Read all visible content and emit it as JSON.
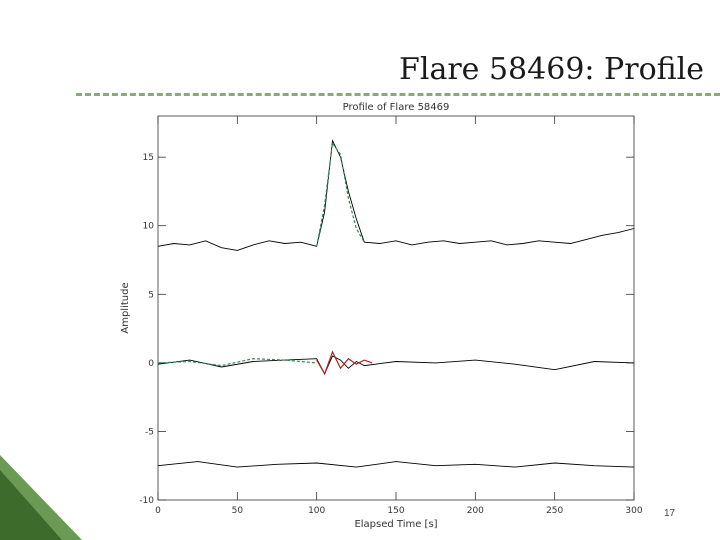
{
  "slide": {
    "title": "Flare 58469: Profile",
    "page_number": "17",
    "colors": {
      "rule": "#8aa97a",
      "corner_dark": "#3c6b2c",
      "corner_light": "#6b9a55"
    }
  },
  "chart_data": {
    "type": "line",
    "title": "Profile of Flare 58469",
    "xlabel": "Elapsed Time [s]",
    "ylabel": "Amplitude",
    "xlim": [
      0,
      300
    ],
    "ylim": [
      -10,
      18
    ],
    "x_ticks": [
      "0",
      "50",
      "100",
      "150",
      "200",
      "250",
      "300"
    ],
    "y_ticks": [
      "-10",
      "-5",
      "0",
      "5",
      "10",
      "15"
    ],
    "y_tick_values": [
      -10,
      -5,
      0,
      5,
      10,
      15
    ],
    "grid": false,
    "series": [
      {
        "role": "observed-profile",
        "color": "#000000",
        "x": [
          0,
          10,
          20,
          30,
          40,
          50,
          60,
          70,
          80,
          90,
          100,
          105,
          110,
          115,
          120,
          125,
          130,
          140,
          150,
          160,
          170,
          180,
          190,
          200,
          210,
          220,
          230,
          240,
          250,
          260,
          270,
          280,
          290,
          300
        ],
        "y": [
          8.5,
          8.7,
          8.6,
          8.9,
          8.4,
          8.2,
          8.6,
          8.9,
          8.7,
          8.8,
          8.5,
          11,
          16.2,
          15,
          12.5,
          10.5,
          8.8,
          8.7,
          8.9,
          8.6,
          8.8,
          8.9,
          8.7,
          8.8,
          8.9,
          8.6,
          8.7,
          8.9,
          8.8,
          8.7,
          9.0,
          9.3,
          9.5,
          9.8
        ]
      },
      {
        "role": "model-fit",
        "color": "#2e8b57",
        "x": [
          100,
          105,
          110,
          115,
          120,
          125,
          130
        ],
        "y": [
          8.5,
          11.5,
          16.0,
          15.2,
          12.0,
          9.8,
          8.8
        ]
      },
      {
        "role": "residuals",
        "color": "#000000",
        "x": [
          0,
          20,
          40,
          60,
          80,
          100,
          105,
          110,
          115,
          120,
          125,
          130,
          150,
          175,
          200,
          225,
          250,
          275,
          300
        ],
        "y": [
          -0.1,
          0.2,
          -0.3,
          0.1,
          0.2,
          0.3,
          -0.8,
          0.5,
          0.2,
          -0.4,
          0.1,
          -0.2,
          0.1,
          0.0,
          0.2,
          -0.1,
          -0.5,
          0.1,
          0.0
        ]
      },
      {
        "role": "residual-fit",
        "color": "#2e8b57",
        "x": [
          0,
          20,
          40,
          60,
          80,
          100
        ],
        "y": [
          0.0,
          0.1,
          -0.2,
          0.3,
          0.2,
          0.0
        ]
      },
      {
        "role": "flare-residual-highlight",
        "color": "#b22222",
        "x": [
          100,
          105,
          110,
          115,
          120,
          125,
          130,
          135
        ],
        "y": [
          0.2,
          -0.8,
          0.8,
          -0.4,
          0.3,
          -0.1,
          0.2,
          0.0
        ]
      },
      {
        "role": "background-noise",
        "color": "#000000",
        "x": [
          0,
          25,
          50,
          75,
          100,
          125,
          150,
          175,
          200,
          225,
          250,
          275,
          300
        ],
        "y": [
          -7.5,
          -7.2,
          -7.6,
          -7.4,
          -7.3,
          -7.6,
          -7.2,
          -7.5,
          -7.4,
          -7.6,
          -7.3,
          -7.5,
          -7.6
        ]
      }
    ]
  }
}
